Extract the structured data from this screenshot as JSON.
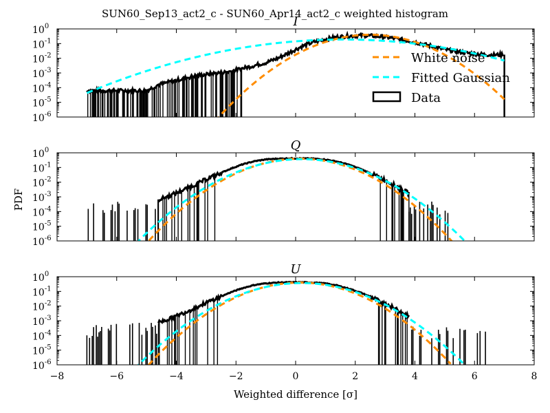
{
  "figure": {
    "title": "SUN60_Sep13_act2_c - SUN60_Apr14_act2_c weighted histogram",
    "xlabel": "Weighted difference [σ]",
    "ylabel": "PDF"
  },
  "legend": {
    "placement": "right, inside top panel",
    "entries": [
      {
        "label": "White noise",
        "color": "#ff8c00",
        "style": "dashed"
      },
      {
        "label": "Fitted Gaussian",
        "color": "#00ffff",
        "style": "dashed"
      },
      {
        "label": "Data",
        "color": "#000000",
        "style": "box"
      }
    ]
  },
  "colors": {
    "data": "#000000",
    "white_noise": "#ff8c00",
    "fitted_gaussian": "#00ffff"
  },
  "chart_data": [
    {
      "type": "line",
      "title": "I",
      "x_range": [
        -8,
        8
      ],
      "y_range_log10": [
        -6,
        0
      ],
      "y_scale": "log",
      "x_ticks": [
        "−8",
        "−6",
        "−4",
        "−2",
        "0",
        "2",
        "4",
        "6",
        "8"
      ],
      "y_ticks": [
        "10",
        "10",
        "10",
        "10",
        "10",
        "10",
        "10"
      ],
      "y_tick_exponents": [
        "-6",
        "-5",
        "-4",
        "-3",
        "-2",
        "-1",
        "0"
      ],
      "series": [
        {
          "name": "White noise",
          "mu": 2.5,
          "sigma": 1.0,
          "x_from": -8,
          "x_to": 7
        },
        {
          "name": "Fitted Gaussian",
          "mu": 1.6,
          "sigma": 2.1,
          "x_from": -7,
          "x_to": 7
        },
        {
          "name": "Data",
          "points": [
            [
              -7.0,
              -4.2
            ],
            [
              -6.6,
              -4.2
            ],
            [
              -6.2,
              -4.2
            ],
            [
              -5.8,
              -4.2
            ],
            [
              -5.4,
              -4.2
            ],
            [
              -5.0,
              -4.2
            ],
            [
              -4.6,
              -3.8
            ],
            [
              -4.2,
              -3.6
            ],
            [
              -3.8,
              -3.4
            ],
            [
              -3.4,
              -3.2
            ],
            [
              -3.0,
              -3.1
            ],
            [
              -2.6,
              -3.0
            ],
            [
              -2.2,
              -2.9
            ],
            [
              -1.8,
              -2.7
            ],
            [
              -1.4,
              -2.5
            ],
            [
              -1.0,
              -2.3
            ],
            [
              -0.6,
              -2.0
            ],
            [
              -0.2,
              -1.6
            ],
            [
              0.2,
              -1.2
            ],
            [
              0.6,
              -0.9
            ],
            [
              1.0,
              -0.7
            ],
            [
              1.4,
              -0.55
            ],
            [
              1.8,
              -0.48
            ],
            [
              2.2,
              -0.45
            ],
            [
              2.6,
              -0.48
            ],
            [
              3.0,
              -0.55
            ],
            [
              3.4,
              -0.68
            ],
            [
              3.8,
              -0.82
            ],
            [
              4.2,
              -1.0
            ],
            [
              4.6,
              -1.2
            ],
            [
              5.0,
              -1.4
            ],
            [
              5.4,
              -1.55
            ],
            [
              5.8,
              -1.65
            ],
            [
              6.2,
              -1.72
            ],
            [
              6.6,
              -1.78
            ],
            [
              6.95,
              -1.75
            ]
          ],
          "drop_at": 7.0
        }
      ]
    },
    {
      "type": "line",
      "title": "Q",
      "x_range": [
        -8,
        8
      ],
      "y_range_log10": [
        -6,
        0
      ],
      "y_scale": "log",
      "x_ticks": [
        "−8",
        "−6",
        "−4",
        "−2",
        "0",
        "2",
        "4",
        "6",
        "8"
      ],
      "y_ticks": [
        "10",
        "10",
        "10",
        "10",
        "10",
        "10",
        "10"
      ],
      "y_tick_exponents": [
        "-6",
        "-5",
        "-4",
        "-3",
        "-2",
        "-1",
        "0"
      ],
      "series": [
        {
          "name": "White noise",
          "mu": 0.15,
          "sigma": 1.0,
          "x_from": -5.6,
          "x_to": 5.6
        },
        {
          "name": "Fitted Gaussian",
          "mu": 0.2,
          "sigma": 1.08,
          "x_from": -5.6,
          "x_to": 5.85
        },
        {
          "name": "Data",
          "points": [
            [
              -4.6,
              -3.2
            ],
            [
              -4.2,
              -2.9
            ],
            [
              -3.8,
              -2.55
            ],
            [
              -3.4,
              -2.2
            ],
            [
              -3.0,
              -1.8
            ],
            [
              -2.6,
              -1.45
            ],
            [
              -2.2,
              -1.1
            ],
            [
              -1.8,
              -0.8
            ],
            [
              -1.4,
              -0.58
            ],
            [
              -1.0,
              -0.45
            ],
            [
              -0.6,
              -0.4
            ],
            [
              -0.2,
              -0.38
            ],
            [
              0.2,
              -0.38
            ],
            [
              0.6,
              -0.4
            ],
            [
              1.0,
              -0.46
            ],
            [
              1.4,
              -0.6
            ],
            [
              1.8,
              -0.82
            ],
            [
              2.2,
              -1.12
            ],
            [
              2.6,
              -1.48
            ],
            [
              3.0,
              -1.85
            ],
            [
              3.4,
              -2.3
            ],
            [
              3.8,
              -2.75
            ]
          ]
        }
      ]
    },
    {
      "type": "line",
      "title": "U",
      "x_range": [
        -8,
        8
      ],
      "y_range_log10": [
        -6,
        0
      ],
      "y_scale": "log",
      "x_ticks": [
        "−8",
        "−6",
        "−4",
        "−2",
        "0",
        "2",
        "4",
        "6",
        "8"
      ],
      "y_ticks": [
        "10",
        "10",
        "10",
        "10",
        "10",
        "10",
        "10"
      ],
      "y_tick_exponents": [
        "-6",
        "-5",
        "-4",
        "-3",
        "-2",
        "-1",
        "0"
      ],
      "series": [
        {
          "name": "White noise",
          "mu": 0.15,
          "sigma": 1.0,
          "x_from": -5.4,
          "x_to": 5.2
        },
        {
          "name": "Fitted Gaussian",
          "mu": 0.2,
          "sigma": 1.08,
          "x_from": -5.4,
          "x_to": 5.65
        },
        {
          "name": "Data",
          "points": [
            [
              -4.6,
              -3.1
            ],
            [
              -4.2,
              -2.85
            ],
            [
              -3.8,
              -2.5
            ],
            [
              -3.4,
              -2.15
            ],
            [
              -3.0,
              -1.78
            ],
            [
              -2.6,
              -1.43
            ],
            [
              -2.2,
              -1.08
            ],
            [
              -1.8,
              -0.79
            ],
            [
              -1.4,
              -0.57
            ],
            [
              -1.0,
              -0.45
            ],
            [
              -0.6,
              -0.4
            ],
            [
              -0.2,
              -0.38
            ],
            [
              0.2,
              -0.38
            ],
            [
              0.6,
              -0.4
            ],
            [
              1.0,
              -0.46
            ],
            [
              1.4,
              -0.6
            ],
            [
              1.8,
              -0.82
            ],
            [
              2.2,
              -1.1
            ],
            [
              2.6,
              -1.45
            ],
            [
              3.0,
              -1.82
            ],
            [
              3.4,
              -2.25
            ],
            [
              3.8,
              -2.7
            ]
          ]
        }
      ]
    }
  ]
}
